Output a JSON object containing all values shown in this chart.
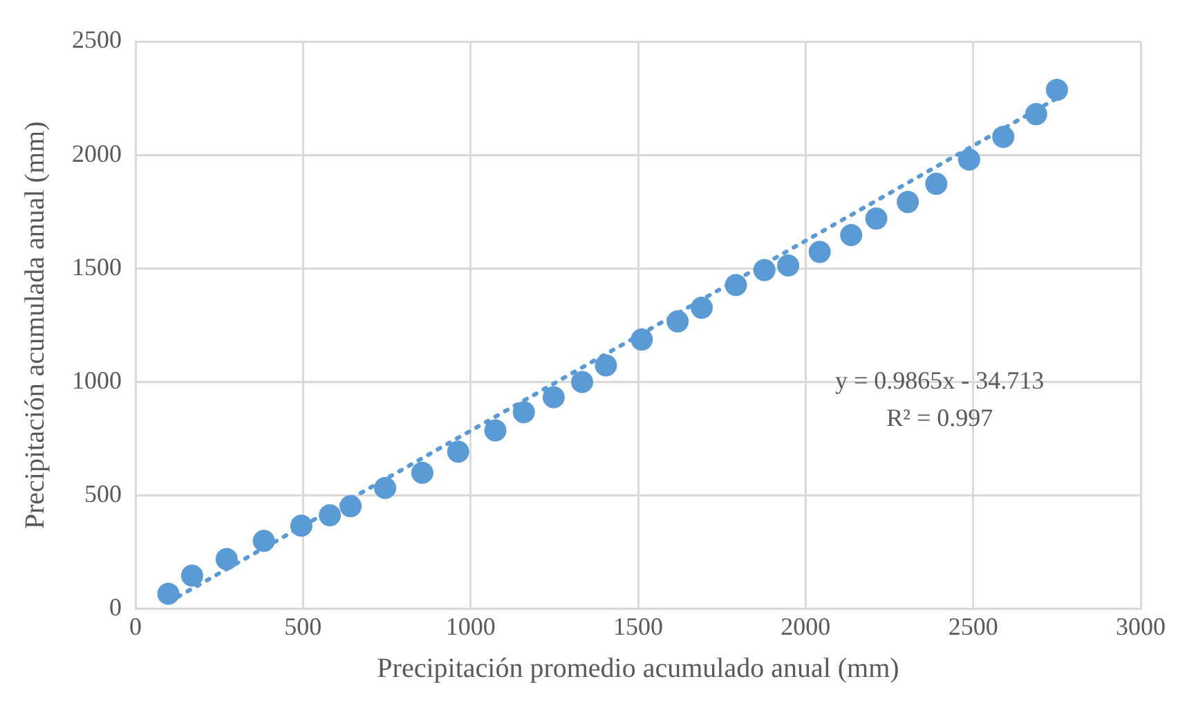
{
  "chart_data": {
    "type": "scatter",
    "xlabel": "Precipitación promedio acumulado anual (mm)",
    "ylabel": "Precipitación acumulada anual (mm)",
    "xlim": [
      0,
      3000
    ],
    "xticks": [
      0,
      500,
      1000,
      1500,
      2000,
      2500,
      3000
    ],
    "ylim": [
      0,
      2500
    ],
    "yticks": [
      0,
      500,
      1000,
      1500,
      2000,
      2500
    ],
    "grid": true,
    "legend": false,
    "marker": "circle",
    "annotations": [
      "y = 0.9865x - 34.713",
      "R² = 0.997"
    ],
    "series": [
      {
        "color": "#5b9bd5",
        "x": [
          98,
          169,
          272,
          383,
          495,
          580,
          642,
          745,
          856,
          963,
          1074,
          1159,
          1248,
          1333,
          1404,
          1511,
          1618,
          1690,
          1792,
          1877,
          1948,
          2042,
          2136,
          2211,
          2305,
          2390,
          2488,
          2590,
          2688,
          2750
        ],
        "values": [
          67,
          147,
          220,
          300,
          367,
          413,
          453,
          533,
          600,
          693,
          787,
          867,
          933,
          1000,
          1073,
          1187,
          1267,
          1327,
          1427,
          1493,
          1513,
          1573,
          1647,
          1720,
          1793,
          1873,
          1980,
          2080,
          2180,
          2287
        ]
      },
      {
        "type": "line",
        "color": "#5b9bd5",
        "line_style": "dotted",
        "marker": "none",
        "x": [
          98,
          2750
        ],
        "values": [
          30,
          2250
        ]
      }
    ]
  }
}
